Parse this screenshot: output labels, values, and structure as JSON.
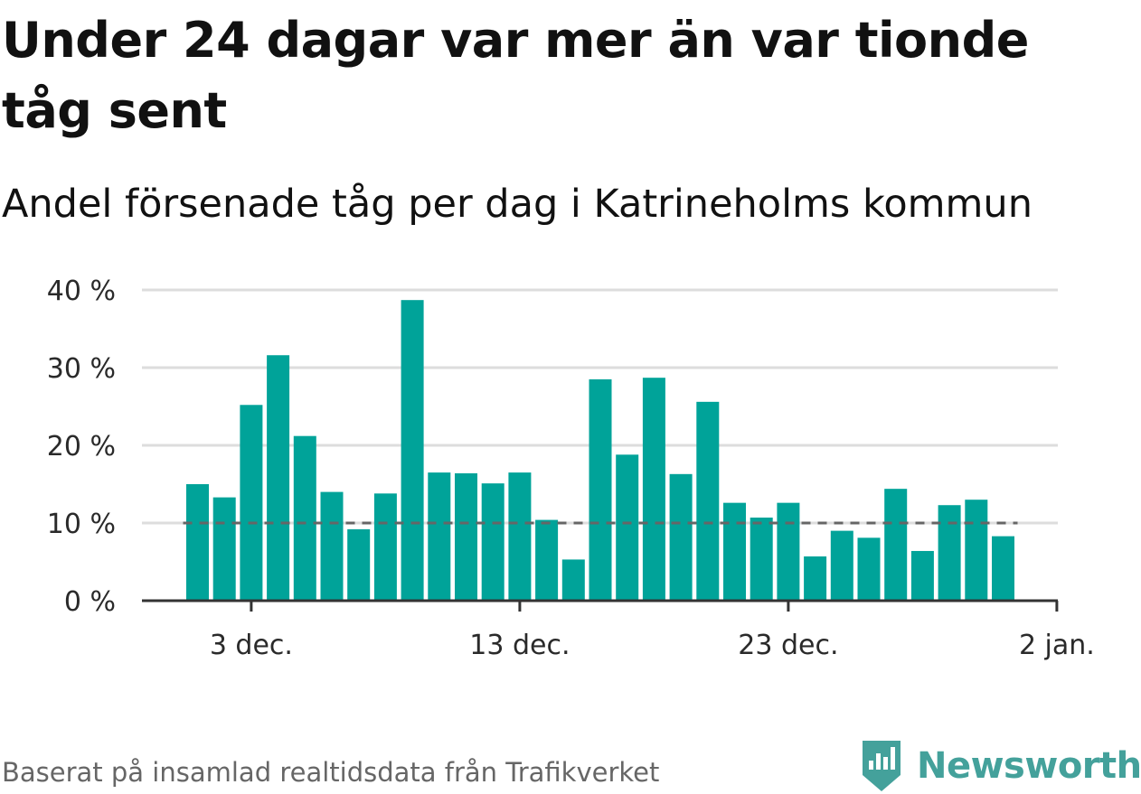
{
  "title": "Under 24 dagar var mer än var tionde tåg sent",
  "subtitle": "Andel försenade tåg per dag i Katrineholms kommun",
  "source": "Baserat på insamlad realtidsdata från Trafikverket",
  "brand": {
    "name": "Newsworthy",
    "color": "#44a19b"
  },
  "colors": {
    "bar": "#00a399",
    "grid": "#dddddd",
    "reference_line": "#666666",
    "axis": "#333333"
  },
  "chart_data": {
    "type": "bar",
    "x": [
      "2020-12-01",
      "2020-12-02",
      "2020-12-03",
      "2020-12-04",
      "2020-12-05",
      "2020-12-06",
      "2020-12-07",
      "2020-12-08",
      "2020-12-09",
      "2020-12-10",
      "2020-12-11",
      "2020-12-12",
      "2020-12-13",
      "2020-12-14",
      "2020-12-15",
      "2020-12-16",
      "2020-12-17",
      "2020-12-18",
      "2020-12-19",
      "2020-12-20",
      "2020-12-21",
      "2020-12-22",
      "2020-12-23",
      "2020-12-24",
      "2020-12-25",
      "2020-12-26",
      "2020-12-27",
      "2020-12-28",
      "2020-12-29",
      "2020-12-30",
      "2020-12-31"
    ],
    "values": [
      15.0,
      13.3,
      25.2,
      31.6,
      21.2,
      14.0,
      9.2,
      13.8,
      38.7,
      16.5,
      16.4,
      15.1,
      16.5,
      10.4,
      5.3,
      28.5,
      18.8,
      28.7,
      16.3,
      25.6,
      12.6,
      10.7,
      12.6,
      5.7,
      9.0,
      8.1,
      14.4,
      6.4,
      12.3,
      13.0,
      8.3
    ],
    "unit": "%",
    "ylim": [
      0,
      40
    ],
    "yticks": [
      0,
      10,
      20,
      30,
      40
    ],
    "ytick_labels": [
      "0 %",
      "10 %",
      "20 %",
      "30 %",
      "40 %"
    ],
    "xticks": [
      "2020-12-03",
      "2020-12-13",
      "2020-12-23",
      "2021-01-02"
    ],
    "xtick_labels": [
      "3 dec.",
      "13 dec.",
      "23 dec.",
      "2 jan."
    ],
    "reference_line": {
      "value": 10,
      "style": "dashed"
    },
    "grid": true
  }
}
